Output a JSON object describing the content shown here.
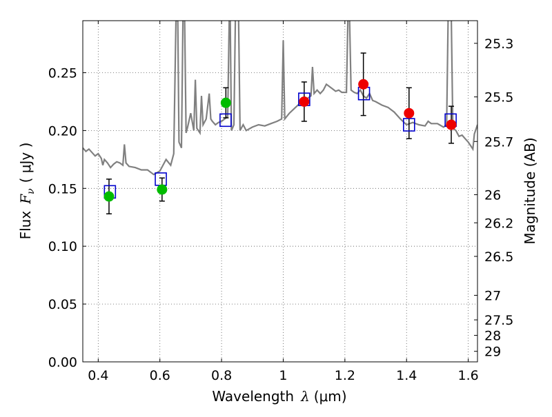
{
  "chart_data": {
    "type": "scatter",
    "xlabel": "Wavelength",
    "xlabel_symbol": "λ",
    "xlabel_unit": "(μm)",
    "ylabel": "Flux",
    "ylabel_symbol": "F",
    "ylabel_subscript": "ν",
    "ylabel_unit": "( μJy )",
    "y2label": "Magnitude (AB)",
    "xlim": [
      0.35,
      1.63
    ],
    "ylim": [
      0.0,
      0.295
    ],
    "grid": true,
    "grid_style": "dotted",
    "x_ticks": [
      0.4,
      0.6,
      0.8,
      1.0,
      1.2,
      1.4,
      1.6
    ],
    "x_tick_labels": [
      "0.4",
      "0.6",
      "0.8",
      "1",
      "1.2",
      "1.4",
      "1.6"
    ],
    "y_ticks": [
      0.0,
      0.05,
      0.1,
      0.15,
      0.2,
      0.25
    ],
    "y_tick_labels": [
      "0.00",
      "0.05",
      "0.10",
      "0.15",
      "0.20",
      "0.25"
    ],
    "y2_ticks": [
      {
        "label": "25.3",
        "mag": 25.3
      },
      {
        "label": "25.5",
        "mag": 25.5
      },
      {
        "label": "25.7",
        "mag": 25.7
      },
      {
        "label": "26",
        "mag": 26.0
      },
      {
        "label": "26.2",
        "mag": 26.2
      },
      {
        "label": "26.5",
        "mag": 26.5
      },
      {
        "label": "27",
        "mag": 27.0
      },
      {
        "label": "27.5",
        "mag": 27.5
      },
      {
        "label": "28",
        "mag": 28.0
      },
      {
        "label": "29",
        "mag": 29.0
      }
    ],
    "colors": {
      "green": "#00bb00",
      "red": "#ee0000",
      "model_box": "#0000cc",
      "spectrum": "#808080",
      "errorbar": "#000000",
      "grid": "#555555"
    },
    "observed": [
      {
        "x": 0.435,
        "y": 0.143,
        "err": 0.015,
        "color": "green"
      },
      {
        "x": 0.607,
        "y": 0.149,
        "err": 0.01,
        "color": "green"
      },
      {
        "x": 0.814,
        "y": 0.224,
        "err": 0.013,
        "color": "green"
      },
      {
        "x": 1.068,
        "y": 0.225,
        "err": 0.017,
        "color": "red"
      },
      {
        "x": 1.26,
        "y": 0.24,
        "err": 0.027,
        "color": "red"
      },
      {
        "x": 1.408,
        "y": 0.215,
        "err": 0.022,
        "color": "red"
      },
      {
        "x": 1.545,
        "y": 0.205,
        "err": 0.016,
        "color": "red"
      }
    ],
    "model_photometry": [
      {
        "x": 0.438,
        "y": 0.147
      },
      {
        "x": 0.603,
        "y": 0.158
      },
      {
        "x": 0.813,
        "y": 0.209
      },
      {
        "x": 1.068,
        "y": 0.227
      },
      {
        "x": 1.262,
        "y": 0.232
      },
      {
        "x": 1.408,
        "y": 0.205
      },
      {
        "x": 1.543,
        "y": 0.209
      }
    ],
    "spectrum": [
      [
        0.35,
        0.185
      ],
      [
        0.36,
        0.182
      ],
      [
        0.37,
        0.184
      ],
      [
        0.38,
        0.181
      ],
      [
        0.39,
        0.178
      ],
      [
        0.4,
        0.18
      ],
      [
        0.41,
        0.176
      ],
      [
        0.415,
        0.17
      ],
      [
        0.42,
        0.175
      ],
      [
        0.43,
        0.172
      ],
      [
        0.44,
        0.168
      ],
      [
        0.45,
        0.171
      ],
      [
        0.46,
        0.173
      ],
      [
        0.47,
        0.172
      ],
      [
        0.48,
        0.17
      ],
      [
        0.485,
        0.188
      ],
      [
        0.49,
        0.172
      ],
      [
        0.5,
        0.169
      ],
      [
        0.52,
        0.168
      ],
      [
        0.54,
        0.166
      ],
      [
        0.56,
        0.166
      ],
      [
        0.58,
        0.162
      ],
      [
        0.6,
        0.165
      ],
      [
        0.62,
        0.175
      ],
      [
        0.635,
        0.17
      ],
      [
        0.645,
        0.18
      ],
      [
        0.652,
        0.295
      ],
      [
        0.655,
        0.295
      ],
      [
        0.658,
        0.3
      ],
      [
        0.662,
        0.19
      ],
      [
        0.67,
        0.185
      ],
      [
        0.675,
        0.3
      ],
      [
        0.68,
        0.3
      ],
      [
        0.685,
        0.198
      ],
      [
        0.69,
        0.203
      ],
      [
        0.7,
        0.215
      ],
      [
        0.71,
        0.2
      ],
      [
        0.715,
        0.244
      ],
      [
        0.72,
        0.202
      ],
      [
        0.73,
        0.198
      ],
      [
        0.735,
        0.23
      ],
      [
        0.74,
        0.205
      ],
      [
        0.75,
        0.21
      ],
      [
        0.76,
        0.232
      ],
      [
        0.765,
        0.21
      ],
      [
        0.77,
        0.208
      ],
      [
        0.78,
        0.205
      ],
      [
        0.79,
        0.207
      ],
      [
        0.8,
        0.208
      ],
      [
        0.81,
        0.21
      ],
      [
        0.82,
        0.212
      ],
      [
        0.825,
        0.3
      ],
      [
        0.828,
        0.3
      ],
      [
        0.832,
        0.2
      ],
      [
        0.84,
        0.205
      ],
      [
        0.845,
        0.3
      ],
      [
        0.848,
        0.3
      ],
      [
        0.852,
        0.3
      ],
      [
        0.855,
        0.3
      ],
      [
        0.86,
        0.2
      ],
      [
        0.87,
        0.205
      ],
      [
        0.88,
        0.2
      ],
      [
        0.9,
        0.203
      ],
      [
        0.92,
        0.205
      ],
      [
        0.94,
        0.204
      ],
      [
        0.96,
        0.206
      ],
      [
        0.98,
        0.208
      ],
      [
        0.995,
        0.21
      ],
      [
        1.0,
        0.278
      ],
      [
        1.005,
        0.21
      ],
      [
        1.02,
        0.215
      ],
      [
        1.04,
        0.22
      ],
      [
        1.06,
        0.225
      ],
      [
        1.08,
        0.228
      ],
      [
        1.09,
        0.23
      ],
      [
        1.095,
        0.255
      ],
      [
        1.1,
        0.232
      ],
      [
        1.11,
        0.235
      ],
      [
        1.12,
        0.232
      ],
      [
        1.13,
        0.235
      ],
      [
        1.14,
        0.24
      ],
      [
        1.15,
        0.238
      ],
      [
        1.16,
        0.236
      ],
      [
        1.17,
        0.234
      ],
      [
        1.18,
        0.235
      ],
      [
        1.19,
        0.233
      ],
      [
        1.205,
        0.233
      ],
      [
        1.21,
        0.3
      ],
      [
        1.215,
        0.3
      ],
      [
        1.22,
        0.235
      ],
      [
        1.23,
        0.233
      ],
      [
        1.24,
        0.232
      ],
      [
        1.25,
        0.235
      ],
      [
        1.26,
        0.23
      ],
      [
        1.27,
        0.228
      ],
      [
        1.28,
        0.232
      ],
      [
        1.29,
        0.226
      ],
      [
        1.3,
        0.225
      ],
      [
        1.32,
        0.222
      ],
      [
        1.34,
        0.22
      ],
      [
        1.36,
        0.216
      ],
      [
        1.38,
        0.21
      ],
      [
        1.4,
        0.205
      ],
      [
        1.42,
        0.207
      ],
      [
        1.44,
        0.205
      ],
      [
        1.46,
        0.204
      ],
      [
        1.47,
        0.208
      ],
      [
        1.48,
        0.206
      ],
      [
        1.5,
        0.206
      ],
      [
        1.52,
        0.203
      ],
      [
        1.53,
        0.205
      ],
      [
        1.535,
        0.3
      ],
      [
        1.54,
        0.3
      ],
      [
        1.545,
        0.3
      ],
      [
        1.55,
        0.202
      ],
      [
        1.56,
        0.2
      ],
      [
        1.57,
        0.195
      ],
      [
        1.58,
        0.196
      ],
      [
        1.59,
        0.193
      ],
      [
        1.6,
        0.19
      ],
      [
        1.61,
        0.186
      ],
      [
        1.615,
        0.184
      ],
      [
        1.62,
        0.197
      ],
      [
        1.63,
        0.205
      ]
    ]
  }
}
